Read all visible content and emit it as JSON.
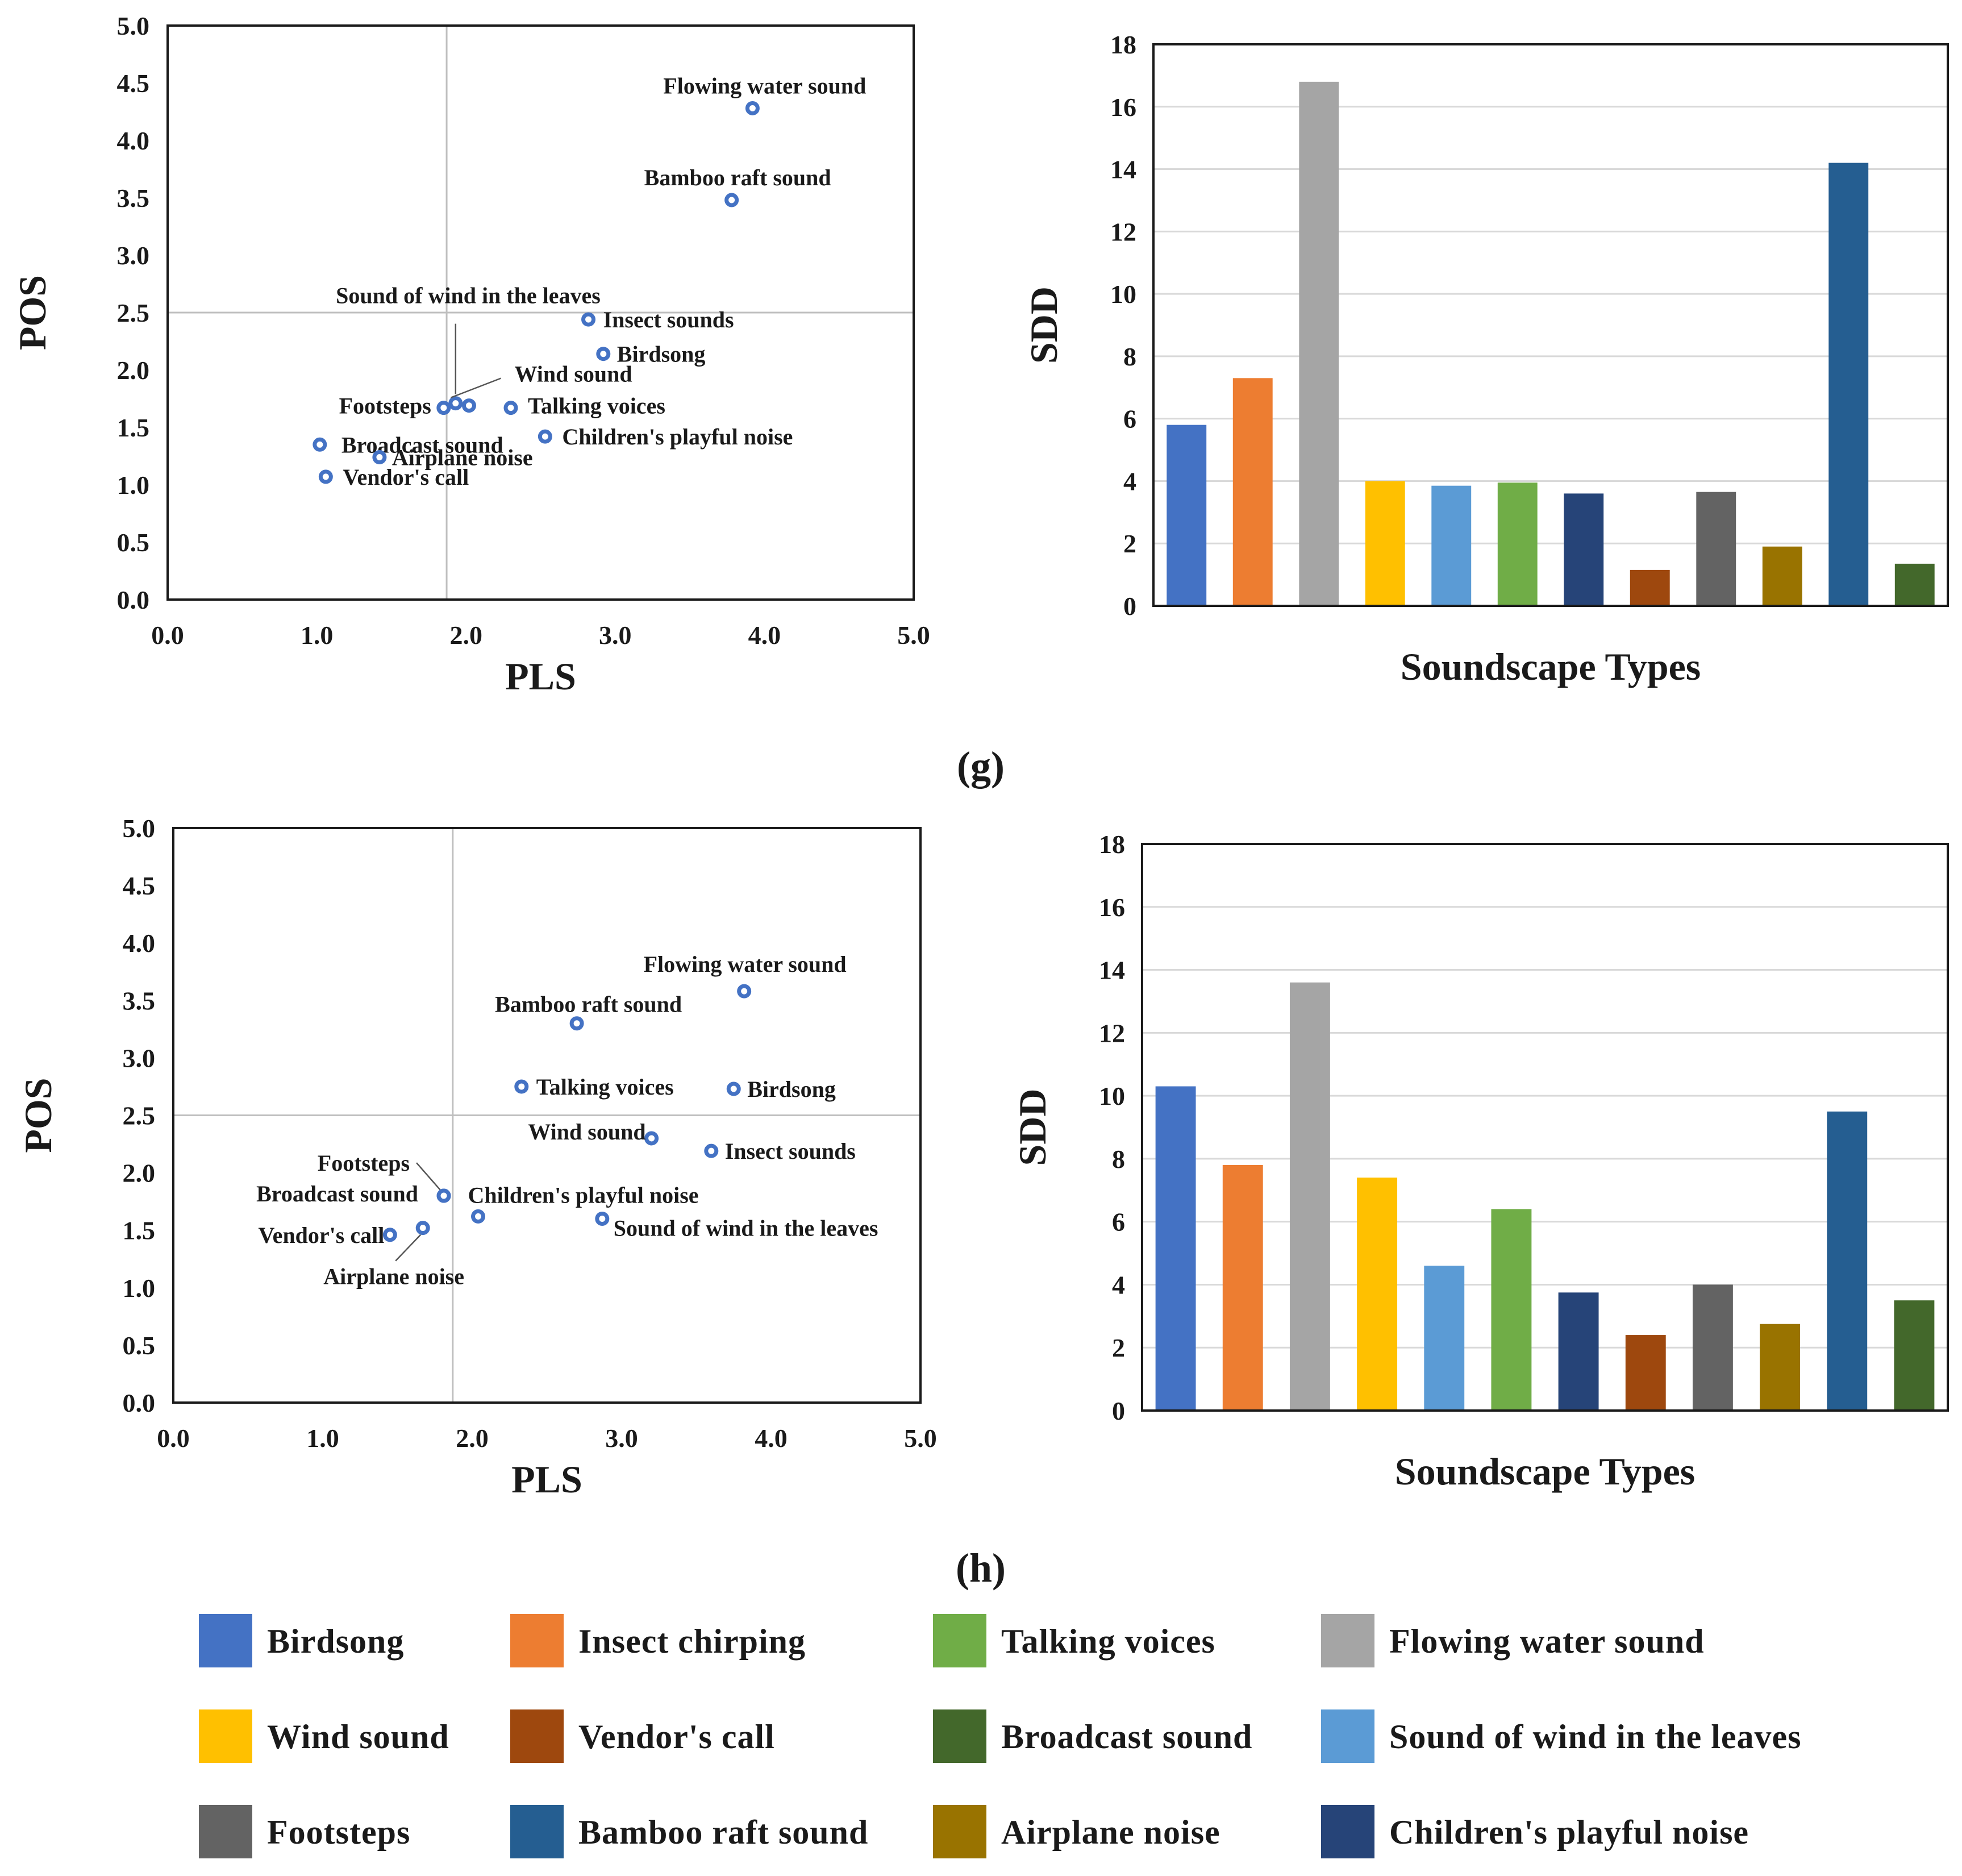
{
  "panels": [
    {
      "label": "(g)",
      "scatter": {
        "type": "scatter",
        "xlabel": "PLS",
        "ylabel": "POS",
        "xlim": [
          0,
          5
        ],
        "ylim": [
          0,
          5
        ],
        "xticks": [
          "0.0",
          "1.0",
          "2.0",
          "3.0",
          "4.0",
          "5.0"
        ],
        "yticks": [
          "0.0",
          "0.5",
          "1.0",
          "1.5",
          "2.0",
          "2.5",
          "3.0",
          "3.5",
          "4.0",
          "4.5",
          "5.0"
        ],
        "ref_x": 1.87,
        "ref_y": 2.5,
        "points": [
          {
            "name": "Flowing water sound",
            "x": 3.92,
            "y": 4.28
          },
          {
            "name": "Bamboo raft sound",
            "x": 3.78,
            "y": 3.48
          },
          {
            "name": "Insect sounds",
            "x": 2.82,
            "y": 2.44
          },
          {
            "name": "Birdsong",
            "x": 2.92,
            "y": 2.14
          },
          {
            "name": "Sound of wind in the leaves",
            "x": 1.93,
            "y": 1.71
          },
          {
            "name": "Wind sound",
            "x": 2.02,
            "y": 1.69
          },
          {
            "name": "Footsteps",
            "x": 1.85,
            "y": 1.67
          },
          {
            "name": "Talking voices",
            "x": 2.3,
            "y": 1.67
          },
          {
            "name": "Children's playful noise",
            "x": 2.53,
            "y": 1.42
          },
          {
            "name": "Broadcast sound",
            "x": 1.02,
            "y": 1.35
          },
          {
            "name": "Airplane noise",
            "x": 1.42,
            "y": 1.24
          },
          {
            "name": "Vendor's call",
            "x": 1.06,
            "y": 1.07
          }
        ]
      },
      "bar": {
        "type": "bar",
        "xlabel": "Soundscape Types",
        "ylabel": "SDD",
        "ylim": [
          0,
          18
        ],
        "yticks": [
          "0",
          "2",
          "4",
          "6",
          "8",
          "10",
          "12",
          "14",
          "16",
          "18"
        ],
        "values": [
          5.8,
          7.3,
          16.8,
          4.0,
          3.85,
          3.95,
          3.6,
          1.15,
          3.65,
          1.9,
          14.2,
          1.35
        ]
      }
    },
    {
      "label": "(h)",
      "scatter": {
        "type": "scatter",
        "xlabel": "PLS",
        "ylabel": "POS",
        "xlim": [
          0,
          5
        ],
        "ylim": [
          0,
          5
        ],
        "xticks": [
          "0.0",
          "1.0",
          "2.0",
          "3.0",
          "4.0",
          "5.0"
        ],
        "yticks": [
          "0.0",
          "0.5",
          "1.0",
          "1.5",
          "2.0",
          "2.5",
          "3.0",
          "3.5",
          "4.0",
          "4.5",
          "5.0"
        ],
        "ref_x": 1.87,
        "ref_y": 2.5,
        "points": [
          {
            "name": "Flowing water sound",
            "x": 3.82,
            "y": 3.58
          },
          {
            "name": "Bamboo raft sound",
            "x": 2.7,
            "y": 3.3
          },
          {
            "name": "Talking voices",
            "x": 2.33,
            "y": 2.75
          },
          {
            "name": "Birdsong",
            "x": 3.75,
            "y": 2.73
          },
          {
            "name": "Wind sound",
            "x": 3.2,
            "y": 2.3
          },
          {
            "name": "Insect sounds",
            "x": 3.6,
            "y": 2.19
          },
          {
            "name": "Footsteps",
            "x": 1.81,
            "y": 1.8
          },
          {
            "name": "Broadcast sound",
            "x": 1.81,
            "y": 1.8
          },
          {
            "name": "Children's playful noise",
            "x": 2.04,
            "y": 1.62
          },
          {
            "name": "Sound of wind in the leaves",
            "x": 2.87,
            "y": 1.6
          },
          {
            "name": "Vendor's call",
            "x": 1.45,
            "y": 1.46
          },
          {
            "name": "Airplane noise",
            "x": 1.67,
            "y": 1.52
          }
        ]
      },
      "bar": {
        "type": "bar",
        "xlabel": "Soundscape Types",
        "ylabel": "SDD",
        "ylim": [
          0,
          18
        ],
        "yticks": [
          "0",
          "2",
          "4",
          "6",
          "8",
          "10",
          "12",
          "14",
          "16",
          "18"
        ],
        "values": [
          10.3,
          7.8,
          13.6,
          7.4,
          4.6,
          6.4,
          3.75,
          2.4,
          4.0,
          2.75,
          9.5,
          3.5
        ]
      }
    }
  ],
  "bar_order": [
    "Birdsong",
    "Insect chirping",
    "Flowing water sound",
    "Wind sound",
    "Sound of wind in the leaves",
    "Talking voices",
    "Children's playful noise",
    "Vendor's call",
    "Footsteps",
    "Airplane noise",
    "Bamboo raft sound",
    "Broadcast sound"
  ],
  "legend": [
    {
      "label": "Birdsong",
      "color": "#4472c4"
    },
    {
      "label": "Insect chirping",
      "color": "#ed7d31"
    },
    {
      "label": "Talking voices",
      "color": "#70ad47"
    },
    {
      "label": "Flowing water sound",
      "color": "#a5a5a5"
    },
    {
      "label": "Wind sound",
      "color": "#ffc000"
    },
    {
      "label": "Vendor's call",
      "color": "#9e480e"
    },
    {
      "label": "Broadcast sound",
      "color": "#43682b"
    },
    {
      "label": "Sound of wind in the leaves",
      "color": "#5b9bd5"
    },
    {
      "label": "Footsteps",
      "color": "#636363"
    },
    {
      "label": "Bamboo raft sound",
      "color": "#255e91"
    },
    {
      "label": "Airplane noise",
      "color": "#997300"
    },
    {
      "label": "Children's playful noise",
      "color": "#264478"
    }
  ],
  "colors": {
    "point": "#4472c4",
    "refline": "#bfbfbf",
    "grid": "#d9d9d9",
    "axis": "#1a1a1a"
  }
}
